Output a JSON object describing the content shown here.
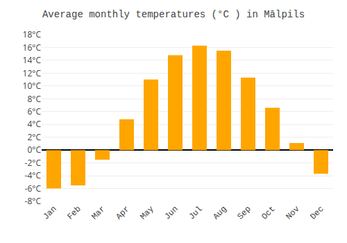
{
  "chart_data": {
    "type": "bar",
    "title": "Average monthly temperatures (°C ) in Mālpils",
    "categories": [
      "Jan",
      "Feb",
      "Mar",
      "Apr",
      "May",
      "Jun",
      "Jul",
      "Aug",
      "Sep",
      "Oct",
      "Nov",
      "Dec"
    ],
    "values": [
      -6.0,
      -5.5,
      -1.5,
      4.8,
      11.0,
      14.8,
      16.3,
      15.5,
      11.3,
      6.6,
      1.1,
      -3.7
    ],
    "color": "#FFA500",
    "ylim": [
      -8,
      18
    ],
    "yticks": [
      {
        "value": -8,
        "label": "-8°C"
      },
      {
        "value": -6,
        "label": "-6°C"
      },
      {
        "value": -4,
        "label": "-4°C"
      },
      {
        "value": -2,
        "label": "-2°C"
      },
      {
        "value": 0,
        "label": "0°C"
      },
      {
        "value": 2,
        "label": "2°C"
      },
      {
        "value": 4,
        "label": "4°C"
      },
      {
        "value": 6,
        "label": "6°C"
      },
      {
        "value": 8,
        "label": "8°C"
      },
      {
        "value": 10,
        "label": "10°C"
      },
      {
        "value": 12,
        "label": "12°C"
      },
      {
        "value": 14,
        "label": "14°C"
      },
      {
        "value": 16,
        "label": "16°C"
      },
      {
        "value": 18,
        "label": "18°C"
      }
    ],
    "grid": true
  }
}
